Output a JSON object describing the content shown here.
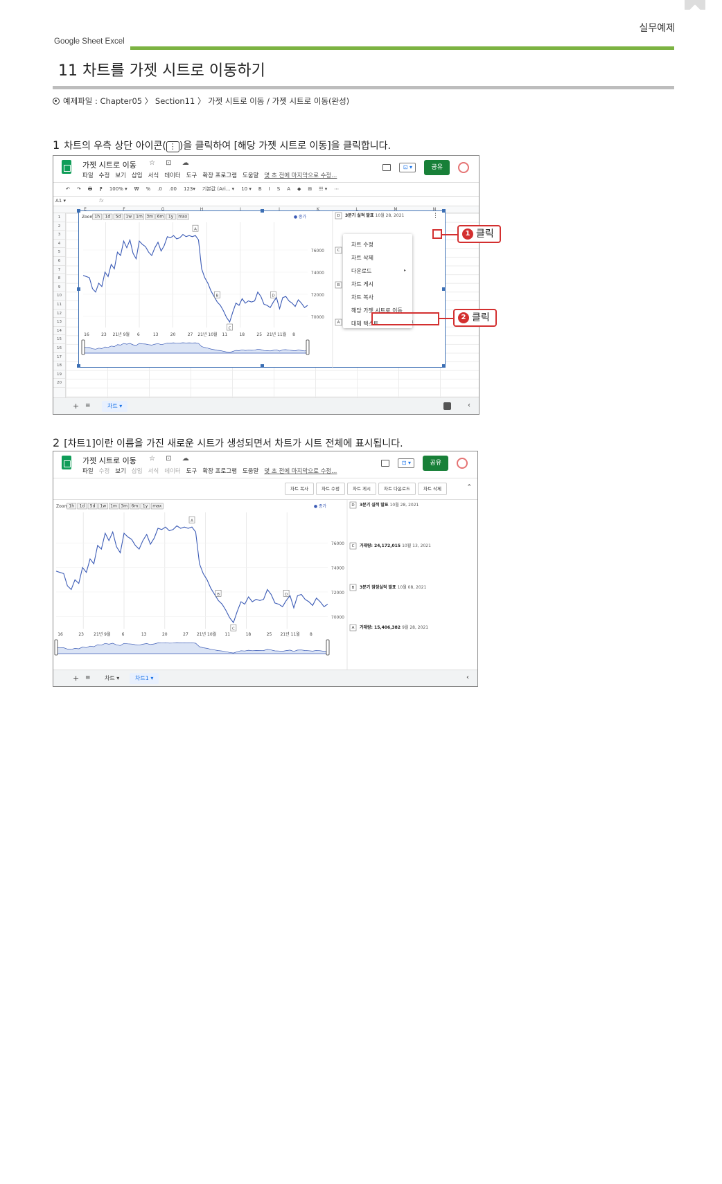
{
  "header": {
    "category": "실무예제",
    "topic": "Google Sheet Excel",
    "section_title": "11 차트를 가젯 시트로 이동하기",
    "example_file": "예제파일 : Chapter05 〉 Section11 〉 가젯 시트로 이동 / 가젯 시트로 이동(완성)"
  },
  "step1": {
    "number": "1",
    "text_before": "차트의 우측 상단 아이콘(",
    "icon": "⋮",
    "text_after": ")을 클릭하여 [해당 가젯 시트로 이동]을 클릭합니다."
  },
  "step2": {
    "number": "2",
    "text": "[차트1]이란 이름을 가진 새로운 시트가 생성되면서 차트가 시트 전체에 표시됩니다."
  },
  "app": {
    "doc_title": "가젯 시트로 이동",
    "title_icons": "☆ ⊡ ☁",
    "menu": [
      "파일",
      "수정",
      "보기",
      "삽입",
      "서식",
      "데이터",
      "도구",
      "확장 프로그램",
      "도움말"
    ],
    "edit_note": "몇 초 전에 마지막으로 수정...",
    "share": "공유",
    "present": "⊡ ▾",
    "toolbar": [
      "↶",
      "↷",
      "🖶",
      "⁋",
      "100%  ▾",
      "₩",
      "%",
      ".0",
      ".00",
      "123▾",
      "기본값 (Ari... ▾",
      "10  ▾",
      "B",
      "I",
      "S",
      "A",
      "◆",
      "⊞",
      "☷ ▾",
      "⋯"
    ],
    "cell_ref": "A1  ▾",
    "fx": "fx",
    "columns": [
      "E",
      "F",
      "G",
      "H",
      "I",
      "J",
      "K",
      "L",
      "M",
      "N"
    ],
    "rows": [
      "1",
      "2",
      "3",
      "4",
      "5",
      "6",
      "7",
      "8",
      "9",
      "10",
      "11",
      "12",
      "13",
      "14",
      "15",
      "16",
      "17",
      "18",
      "19",
      "20"
    ]
  },
  "context_menu": {
    "items": [
      "차트 수정",
      "차트 삭제",
      "다운로드",
      "차트 게시",
      "차트 복사",
      "해당 가젯 시트로 이동",
      "대체 텍스트"
    ],
    "submenu_arrow": "▸"
  },
  "callouts": [
    {
      "badge": "1",
      "label": "클릭"
    },
    {
      "badge": "2",
      "label": "클릭"
    }
  ],
  "chart_actions": [
    "차트 복사",
    "차트 수정",
    "차트 게시",
    "차트 다운로드",
    "차트 삭제"
  ],
  "sheet_tabs": {
    "add": "+",
    "all": "≡",
    "tab1": "차트  ▾",
    "tab2": "차트1  ▾",
    "collapse": "‹"
  },
  "chart_data": {
    "type": "line",
    "zoom_label": "Zoom:",
    "zoom_options": [
      "1h",
      "1d",
      "5d",
      "1w",
      "1m",
      "3m",
      "6m",
      "1y",
      "max"
    ],
    "legend": "● 종가",
    "y_ticks": [
      "76000",
      "74000",
      "72000",
      "70000"
    ],
    "ylim": [
      69000,
      78500
    ],
    "x_tick_labels": [
      "16",
      "23",
      "21년 9월",
      "6",
      "13",
      "20",
      "27",
      "21년 10월",
      "11",
      "18",
      "25",
      "21년 11월",
      "8"
    ],
    "values": [
      73700,
      73600,
      73500,
      72500,
      72200,
      73000,
      72700,
      74000,
      73600,
      74700,
      74300,
      75800,
      75500,
      76800,
      76200,
      76900,
      75700,
      75200,
      76800,
      76500,
      76300,
      75800,
      75500,
      76200,
      76700,
      75900,
      76400,
      77200,
      77100,
      77300,
      77000,
      77100,
      77400,
      77200,
      77300,
      77200,
      77300,
      76900,
      74300,
      73500,
      73000,
      72300,
      71800,
      71300,
      71000,
      70500,
      69900,
      69500,
      70400,
      71200,
      71000,
      71600,
      71200,
      71400,
      71300,
      71400,
      72200,
      71800,
      71100,
      71000,
      70800,
      71300,
      71700,
      70700,
      71700,
      71800,
      71400,
      71200,
      70900,
      71500,
      71200,
      70800,
      71000
    ],
    "annotation_markers": [
      "A",
      "B",
      "C",
      "D"
    ],
    "annotations": [
      {
        "marker": "D",
        "title": "3분기 실적 발표",
        "date": "10월 28, 2021"
      },
      {
        "marker": "C",
        "title": "거래량: 24,172,015",
        "date": "10월 13, 2021"
      },
      {
        "marker": "B",
        "title": "3분기 잠정실적 발표",
        "date": "10월 08, 2021"
      },
      {
        "marker": "A",
        "title": "거래량: 15,406,382",
        "date": "9월 28, 2021"
      }
    ],
    "annotations_partial": [
      "거",
      "3분"
    ]
  }
}
